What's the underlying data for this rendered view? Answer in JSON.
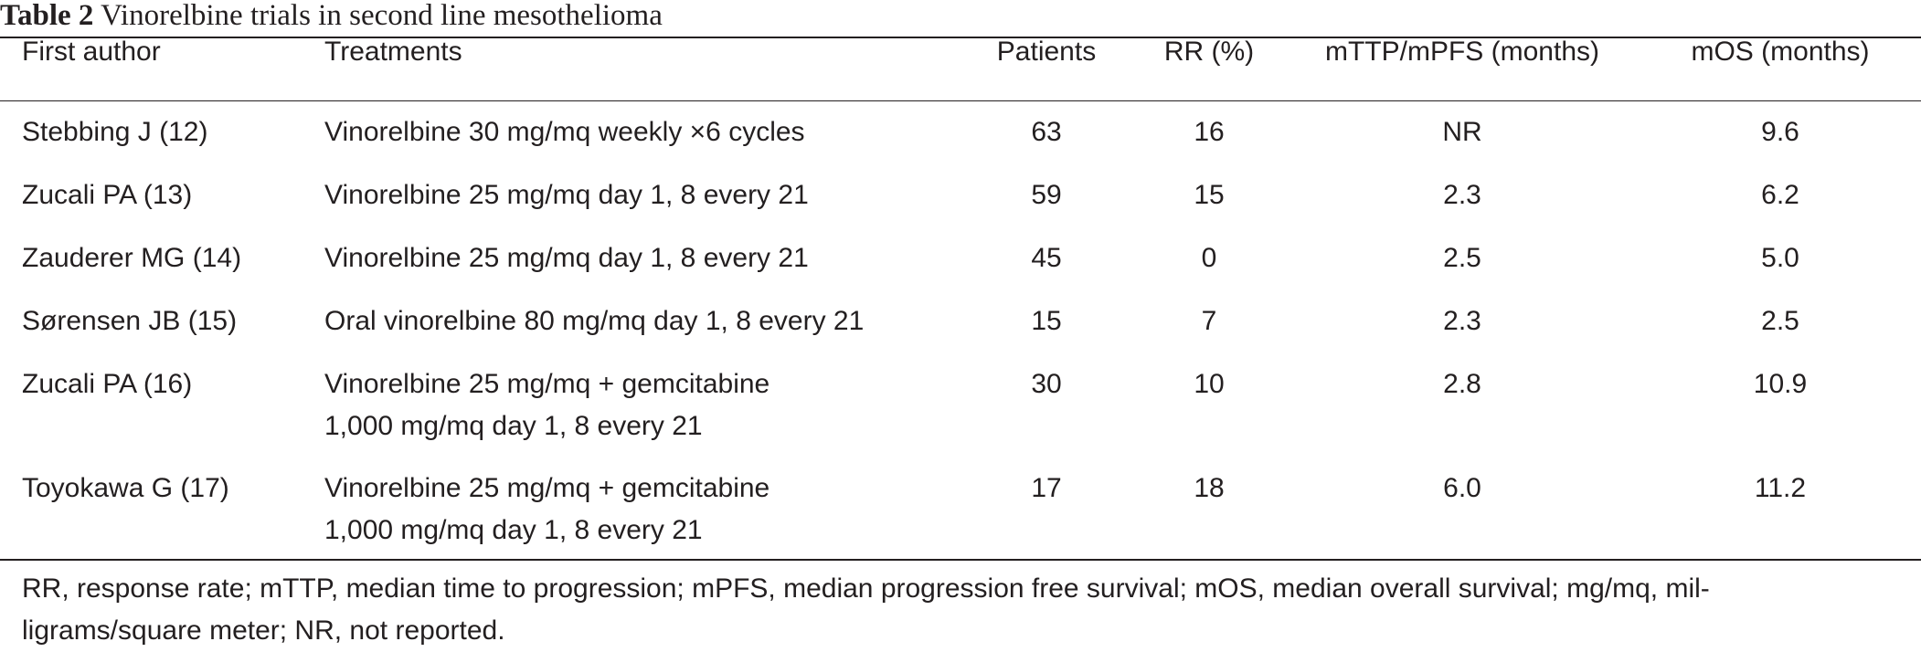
{
  "caption": {
    "label": "Table 2",
    "title": "Vinorelbine trials in second line mesothelioma"
  },
  "table": {
    "headers": [
      "First author",
      "Treatments",
      "Patients",
      "RR (%)",
      "mTTP/mPFS (months)",
      "mOS (months)"
    ],
    "rows": [
      {
        "author": "Stebbing J (12)",
        "treatment": [
          "Vinorelbine 30 mg/mq weekly ×6 cycles"
        ],
        "patients": "63",
        "rr": "16",
        "mttp": "NR",
        "mos": "9.6"
      },
      {
        "author": "Zucali PA (13)",
        "treatment": [
          "Vinorelbine 25 mg/mq day 1, 8 every 21"
        ],
        "patients": "59",
        "rr": "15",
        "mttp": "2.3",
        "mos": "6.2"
      },
      {
        "author": "Zauderer MG (14)",
        "treatment": [
          "Vinorelbine 25 mg/mq day 1, 8 every 21"
        ],
        "patients": "45",
        "rr": "0",
        "mttp": "2.5",
        "mos": "5.0"
      },
      {
        "author": "Sørensen JB (15)",
        "treatment": [
          "Oral vinorelbine 80 mg/mq day 1, 8 every 21"
        ],
        "patients": "15",
        "rr": "7",
        "mttp": "2.3",
        "mos": "2.5"
      },
      {
        "author": "Zucali PA (16)",
        "treatment": [
          "Vinorelbine 25 mg/mq + gemcitabine",
          "1,000 mg/mq day 1, 8 every 21"
        ],
        "patients": "30",
        "rr": "10",
        "mttp": "2.8",
        "mos": "10.9"
      },
      {
        "author": "Toyokawa G (17)",
        "treatment": [
          "Vinorelbine 25 mg/mq + gemcitabine",
          "1,000 mg/mq day 1, 8 every 21"
        ],
        "patients": "17",
        "rr": "18",
        "mttp": "6.0",
        "mos": "11.2"
      }
    ]
  },
  "footnote": [
    "RR, response rate; mTTP, median time to progression; mPFS, median progression free survival; mOS, median overall survival; mg/mq, mil-",
    "ligrams/square meter; NR, not reported."
  ]
}
